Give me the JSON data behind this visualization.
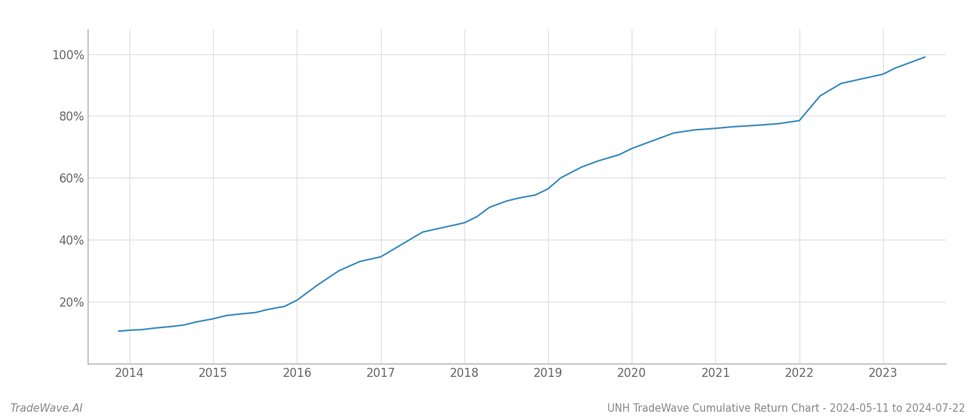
{
  "title": "UNH TradeWave Cumulative Return Chart - 2024-05-11 to 2024-07-22",
  "watermark": "TradeWave.AI",
  "line_color": "#3a8abf",
  "background_color": "#ffffff",
  "grid_color": "#dddddd",
  "x_years": [
    2014,
    2015,
    2016,
    2017,
    2018,
    2019,
    2020,
    2021,
    2022,
    2023
  ],
  "x_values": [
    2013.87,
    2014.0,
    2014.15,
    2014.3,
    2014.5,
    2014.65,
    2014.8,
    2015.0,
    2015.15,
    2015.3,
    2015.5,
    2015.65,
    2015.85,
    2016.0,
    2016.25,
    2016.5,
    2016.75,
    2017.0,
    2017.25,
    2017.5,
    2017.75,
    2018.0,
    2018.15,
    2018.3,
    2018.5,
    2018.65,
    2018.85,
    2019.0,
    2019.15,
    2019.4,
    2019.6,
    2019.85,
    2020.0,
    2020.2,
    2020.5,
    2020.75,
    2021.0,
    2021.2,
    2021.5,
    2021.75,
    2022.0,
    2022.25,
    2022.5,
    2022.75,
    2023.0,
    2023.15,
    2023.35,
    2023.5
  ],
  "y_values": [
    0.105,
    0.108,
    0.11,
    0.115,
    0.12,
    0.125,
    0.135,
    0.145,
    0.155,
    0.16,
    0.165,
    0.175,
    0.185,
    0.205,
    0.255,
    0.3,
    0.33,
    0.345,
    0.385,
    0.425,
    0.44,
    0.455,
    0.475,
    0.505,
    0.525,
    0.535,
    0.545,
    0.565,
    0.6,
    0.635,
    0.655,
    0.675,
    0.695,
    0.715,
    0.745,
    0.755,
    0.76,
    0.765,
    0.77,
    0.775,
    0.785,
    0.865,
    0.905,
    0.92,
    0.935,
    0.955,
    0.975,
    0.99
  ],
  "ylim": [
    0.0,
    1.08
  ],
  "yticks": [
    0.2,
    0.4,
    0.6,
    0.8,
    1.0
  ],
  "ytick_labels": [
    "20%",
    "40%",
    "60%",
    "80%",
    "100%"
  ],
  "xlim": [
    2013.5,
    2023.75
  ],
  "title_fontsize": 10.5,
  "watermark_fontsize": 11,
  "tick_label_color": "#666666",
  "bottom_text_color": "#888888",
  "line_width": 1.6,
  "left_spine_color": "#aaaaaa",
  "bottom_spine_color": "#aaaaaa"
}
